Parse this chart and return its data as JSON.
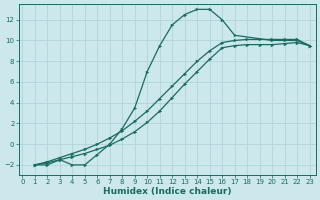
{
  "xlabel": "Humidex (Indice chaleur)",
  "bg_color": "#cce8ec",
  "grid_color": "#b0d4d8",
  "line_color": "#1a6b60",
  "xlim": [
    -0.3,
    23.5
  ],
  "ylim": [
    -3.0,
    13.5
  ],
  "xticks": [
    0,
    1,
    2,
    3,
    4,
    5,
    6,
    7,
    8,
    9,
    10,
    11,
    12,
    13,
    14,
    15,
    16,
    17,
    18,
    19,
    20,
    21,
    22,
    23
  ],
  "yticks": [
    -2,
    0,
    2,
    4,
    6,
    8,
    10,
    12
  ],
  "curve1_x": [
    1,
    2,
    3,
    4,
    5,
    6,
    7,
    8,
    9,
    10,
    11,
    12,
    13,
    14,
    15,
    16,
    17,
    20,
    21,
    22,
    23
  ],
  "curve1_y": [
    -2,
    -2,
    -1.5,
    -2,
    -2,
    -1,
    0,
    1.5,
    3.5,
    7,
    9.5,
    11.5,
    12.5,
    13,
    13,
    12,
    10.5,
    10,
    10,
    10,
    9.5
  ],
  "curve2_x": [
    1,
    2,
    3,
    4,
    5,
    6,
    7,
    8,
    9,
    10,
    11,
    12,
    13,
    14,
    15,
    16,
    17,
    18,
    19,
    20,
    21,
    22,
    23
  ],
  "curve2_y": [
    -2,
    -1.8,
    -1.5,
    -1.2,
    -0.9,
    -0.5,
    -0.1,
    0.5,
    1.2,
    2.1,
    3.2,
    4.5,
    5.8,
    7.0,
    8.2,
    9.3,
    9.5,
    9.6,
    9.6,
    9.6,
    9.7,
    9.8,
    9.5
  ],
  "curve3_x": [
    1,
    2,
    3,
    4,
    5,
    6,
    7,
    8,
    9,
    10,
    11,
    12,
    13,
    14,
    15,
    16,
    17,
    18,
    19,
    20,
    21,
    22,
    23
  ],
  "curve3_y": [
    -2,
    -1.7,
    -1.3,
    -0.9,
    -0.5,
    -0.0,
    0.6,
    1.3,
    2.2,
    3.2,
    4.4,
    5.6,
    6.8,
    8.0,
    9.0,
    9.8,
    10.0,
    10.1,
    10.1,
    10.1,
    10.1,
    10.1,
    9.5
  ]
}
